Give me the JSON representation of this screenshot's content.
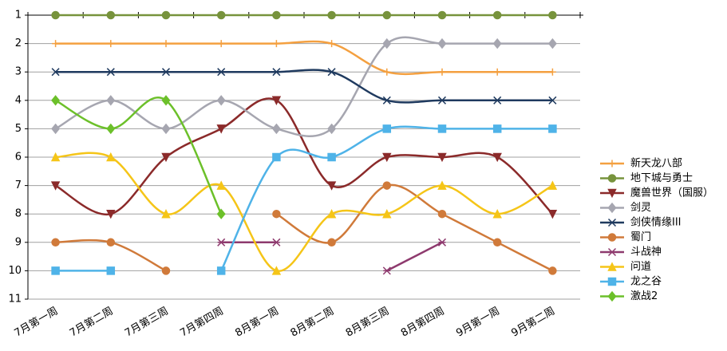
{
  "chart_data": {
    "type": "line",
    "categories": [
      "7月第一周",
      "7月第二周",
      "7月第三周",
      "7月第四周",
      "8月第一周",
      "8月第二周",
      "8月第三周",
      "8月第四周",
      "9月第一周",
      "9月第二周"
    ],
    "ylim": [
      11,
      1
    ],
    "yticks": [
      1,
      2,
      3,
      4,
      5,
      6,
      7,
      8,
      9,
      10,
      11
    ],
    "grid": true,
    "smooth": true,
    "legend": "right",
    "series": [
      {
        "name": "新天龙八部",
        "color": "#f4a040",
        "marker": "plus",
        "values": [
          2,
          2,
          2,
          2,
          2,
          2,
          3,
          3,
          3,
          3
        ]
      },
      {
        "name": "地下城与勇士",
        "color": "#77933c",
        "marker": "circle",
        "values": [
          1,
          1,
          1,
          1,
          1,
          1,
          1,
          1,
          1,
          1
        ]
      },
      {
        "name": "魔兽世界（国服）",
        "color": "#8b2a2a",
        "marker": "triangle-down",
        "values": [
          7,
          8,
          6,
          5,
          4,
          7,
          6,
          6,
          6,
          8
        ]
      },
      {
        "name": "剑灵",
        "color": "#a6a6b0",
        "marker": "diamond",
        "values": [
          5,
          4,
          5,
          4,
          5,
          5,
          2,
          2,
          2,
          2
        ]
      },
      {
        "name": "剑侠情缘III",
        "color": "#1f3a5f",
        "marker": "x",
        "values": [
          3,
          3,
          3,
          3,
          3,
          3,
          4,
          4,
          4,
          4
        ]
      },
      {
        "name": "蜀门",
        "color": "#d07a3a",
        "marker": "circle",
        "values": [
          9,
          9,
          10,
          null,
          8,
          9,
          7,
          8,
          9,
          10
        ]
      },
      {
        "name": "斗战神",
        "color": "#8e3a6e",
        "marker": "asterisk",
        "values": [
          null,
          null,
          null,
          9,
          9,
          null,
          10,
          9,
          null,
          null
        ]
      },
      {
        "name": "问道",
        "color": "#f5c518",
        "marker": "triangle-up",
        "values": [
          6,
          6,
          8,
          7,
          10,
          8,
          8,
          7,
          8,
          7
        ]
      },
      {
        "name": "龙之谷",
        "color": "#4fb3e8",
        "marker": "square",
        "values": [
          10,
          10,
          null,
          10,
          6,
          6,
          5,
          5,
          5,
          5
        ]
      },
      {
        "name": "激战2",
        "color": "#6cc02a",
        "marker": "diamond",
        "values": [
          4,
          5,
          4,
          8,
          null,
          null,
          null,
          null,
          null,
          null
        ]
      }
    ]
  }
}
